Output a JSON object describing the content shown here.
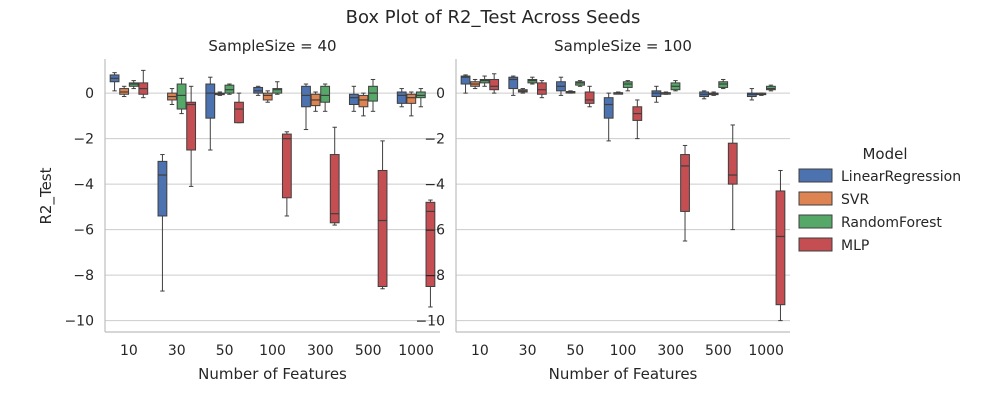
{
  "chart_data": {
    "type": "box",
    "title": "Box Plot of R2_Test Across Seeds",
    "ylabel": "R2_Test",
    "xlabel": "Number of Features",
    "ylim": [
      -10.5,
      1.5
    ],
    "yticks": [
      0,
      -2,
      -4,
      -6,
      -8,
      -10
    ],
    "ytick_labels": [
      "0",
      "−2",
      "−4",
      "−6",
      "−8",
      "−10"
    ],
    "categories": [
      "10",
      "30",
      "50",
      "100",
      "300",
      "500",
      "1000"
    ],
    "grid": true,
    "legend": {
      "title": "Model",
      "placement": "right",
      "entries": [
        {
          "name": "LinearRegression",
          "color": "#4c72b0"
        },
        {
          "name": "SVR",
          "color": "#dd8452"
        },
        {
          "name": "RandomForest",
          "color": "#55a868"
        },
        {
          "name": "MLP",
          "color": "#c44e52"
        }
      ]
    },
    "panels": [
      {
        "title": "SampleSize = 40",
        "series": [
          {
            "name": "LinearRegression",
            "boxes": [
              {
                "min": 0.1,
                "q1": 0.5,
                "median": 0.65,
                "q3": 0.8,
                "max": 0.9
              },
              {
                "min": -8.7,
                "q1": -5.4,
                "median": -3.6,
                "q3": -3.0,
                "max": -2.7
              },
              {
                "min": -2.5,
                "q1": -1.1,
                "median": 0.0,
                "q3": 0.4,
                "max": 0.7
              },
              {
                "min": -0.1,
                "q1": 0.0,
                "median": 0.1,
                "q3": 0.25,
                "max": 0.3
              },
              {
                "min": -1.6,
                "q1": -0.6,
                "median": -0.1,
                "q3": 0.3,
                "max": 0.4
              },
              {
                "min": -0.8,
                "q1": -0.5,
                "median": -0.2,
                "q3": -0.05,
                "max": 0.3
              },
              {
                "min": -0.6,
                "q1": -0.45,
                "median": -0.1,
                "q3": 0.05,
                "max": 0.2
              }
            ]
          },
          {
            "name": "SVR",
            "boxes": [
              {
                "min": -0.15,
                "q1": -0.05,
                "median": 0.05,
                "q3": 0.2,
                "max": 0.3
              },
              {
                "min": -0.5,
                "q1": -0.3,
                "median": -0.15,
                "q3": 0.0,
                "max": 0.2
              },
              {
                "min": -0.1,
                "q1": -0.05,
                "median": -0.02,
                "q3": 0.0,
                "max": 0.05
              },
              {
                "min": -0.4,
                "q1": -0.3,
                "median": -0.1,
                "q3": 0.0,
                "max": 0.1
              },
              {
                "min": -0.8,
                "q1": -0.55,
                "median": -0.3,
                "q3": -0.05,
                "max": 0.05
              },
              {
                "min": -1.0,
                "q1": -0.6,
                "median": -0.3,
                "q3": -0.1,
                "max": 0.0
              },
              {
                "min": -1.0,
                "q1": -0.45,
                "median": -0.2,
                "q3": -0.05,
                "max": 0.05
              }
            ]
          },
          {
            "name": "RandomForest",
            "boxes": [
              {
                "min": 0.2,
                "q1": 0.3,
                "median": 0.4,
                "q3": 0.45,
                "max": 0.55
              },
              {
                "min": -0.9,
                "q1": -0.7,
                "median": -0.1,
                "q3": 0.4,
                "max": 0.65
              },
              {
                "min": -0.05,
                "q1": 0.0,
                "median": 0.15,
                "q3": 0.35,
                "max": 0.4
              },
              {
                "min": -0.05,
                "q1": 0.0,
                "median": 0.15,
                "q3": 0.2,
                "max": 0.5
              },
              {
                "min": -0.8,
                "q1": -0.4,
                "median": -0.1,
                "q3": 0.3,
                "max": 0.4
              },
              {
                "min": -0.8,
                "q1": -0.35,
                "median": 0.0,
                "q3": 0.3,
                "max": 0.6
              },
              {
                "min": -0.6,
                "q1": -0.2,
                "median": -0.1,
                "q3": 0.05,
                "max": 0.2
              }
            ]
          },
          {
            "name": "MLP",
            "boxes": [
              {
                "min": -0.2,
                "q1": -0.05,
                "median": 0.2,
                "q3": 0.45,
                "max": 1.0
              },
              {
                "min": -4.1,
                "q1": -2.5,
                "median": -0.5,
                "q3": -0.4,
                "max": 0.3
              },
              {
                "min": -1.3,
                "q1": -1.3,
                "median": -0.7,
                "q3": -0.4,
                "max": 0.0
              },
              {
                "min": -5.4,
                "q1": -4.6,
                "median": -2.0,
                "q3": -1.8,
                "max": -1.7
              },
              {
                "min": -5.8,
                "q1": -5.7,
                "median": -5.3,
                "q3": -2.7,
                "max": -1.5
              },
              {
                "min": -8.6,
                "q1": -8.5,
                "median": -5.6,
                "q3": -3.4,
                "max": -2.1
              },
              {
                "min": -9.4,
                "q1": -8.5,
                "median": -5.2,
                "q3": -4.8,
                "max": -4.7
              }
            ]
          }
        ]
      },
      {
        "title": "SampleSize = 100",
        "series": [
          {
            "name": "LinearRegression",
            "boxes": [
              {
                "min": 0.0,
                "q1": 0.4,
                "median": 0.7,
                "q3": 0.75,
                "max": 0.8
              },
              {
                "min": -0.1,
                "q1": 0.2,
                "median": 0.6,
                "q3": 0.7,
                "max": 0.75
              },
              {
                "min": -0.1,
                "q1": 0.1,
                "median": 0.3,
                "q3": 0.5,
                "max": 0.7
              },
              {
                "min": -2.1,
                "q1": -1.1,
                "median": -0.5,
                "q3": -0.2,
                "max": 0.0
              },
              {
                "min": -0.4,
                "q1": -0.15,
                "median": 0.0,
                "q3": 0.1,
                "max": 0.3
              },
              {
                "min": -0.25,
                "q1": -0.15,
                "median": -0.05,
                "q3": 0.05,
                "max": 0.1
              },
              {
                "min": -0.3,
                "q1": -0.15,
                "median": -0.05,
                "q3": 0.0,
                "max": 0.2
              }
            ]
          },
          {
            "name": "SVR",
            "boxes": [
              {
                "min": 0.2,
                "q1": 0.3,
                "median": 0.4,
                "q3": 0.5,
                "max": 0.6
              },
              {
                "min": 0.0,
                "q1": 0.05,
                "median": 0.1,
                "q3": 0.15,
                "max": 0.2
              },
              {
                "min": 0.0,
                "q1": 0.03,
                "median": 0.05,
                "q3": 0.07,
                "max": 0.1
              },
              {
                "min": -0.02,
                "q1": 0.0,
                "median": 0.0,
                "q3": 0.02,
                "max": 0.05
              },
              {
                "min": -0.05,
                "q1": -0.02,
                "median": 0.0,
                "q3": 0.02,
                "max": 0.05
              },
              {
                "min": -0.1,
                "q1": -0.05,
                "median": -0.02,
                "q3": 0.0,
                "max": 0.05
              },
              {
                "min": -0.1,
                "q1": -0.05,
                "median": -0.05,
                "q3": 0.0,
                "max": 0.0
              }
            ]
          },
          {
            "name": "RandomForest",
            "boxes": [
              {
                "min": 0.3,
                "q1": 0.45,
                "median": 0.55,
                "q3": 0.6,
                "max": 0.75
              },
              {
                "min": 0.4,
                "q1": 0.45,
                "median": 0.55,
                "q3": 0.6,
                "max": 0.7
              },
              {
                "min": 0.3,
                "q1": 0.35,
                "median": 0.45,
                "q3": 0.5,
                "max": 0.55
              },
              {
                "min": 0.1,
                "q1": 0.25,
                "median": 0.4,
                "q3": 0.5,
                "max": 0.55
              },
              {
                "min": 0.1,
                "q1": 0.15,
                "median": 0.3,
                "q3": 0.45,
                "max": 0.55
              },
              {
                "min": 0.2,
                "q1": 0.25,
                "median": 0.4,
                "q3": 0.5,
                "max": 0.6
              },
              {
                "min": 0.1,
                "q1": 0.15,
                "median": 0.2,
                "q3": 0.3,
                "max": 0.35
              }
            ]
          },
          {
            "name": "MLP",
            "boxes": [
              {
                "min": 0.0,
                "q1": 0.15,
                "median": 0.3,
                "q3": 0.6,
                "max": 0.85
              },
              {
                "min": -0.2,
                "q1": -0.05,
                "median": 0.15,
                "q3": 0.45,
                "max": 0.55
              },
              {
                "min": -0.6,
                "q1": -0.45,
                "median": -0.3,
                "q3": 0.05,
                "max": 0.3
              },
              {
                "min": -2.0,
                "q1": -1.2,
                "median": -0.9,
                "q3": -0.6,
                "max": -0.3
              },
              {
                "min": -6.5,
                "q1": -5.2,
                "median": -3.2,
                "q3": -2.7,
                "max": -2.3
              },
              {
                "min": -6.0,
                "q1": -4.0,
                "median": -3.6,
                "q3": -2.2,
                "max": -1.4
              },
              {
                "min": -10.0,
                "q1": -9.3,
                "median": -6.3,
                "q3": -4.3,
                "max": -3.4
              }
            ]
          }
        ]
      }
    ]
  }
}
